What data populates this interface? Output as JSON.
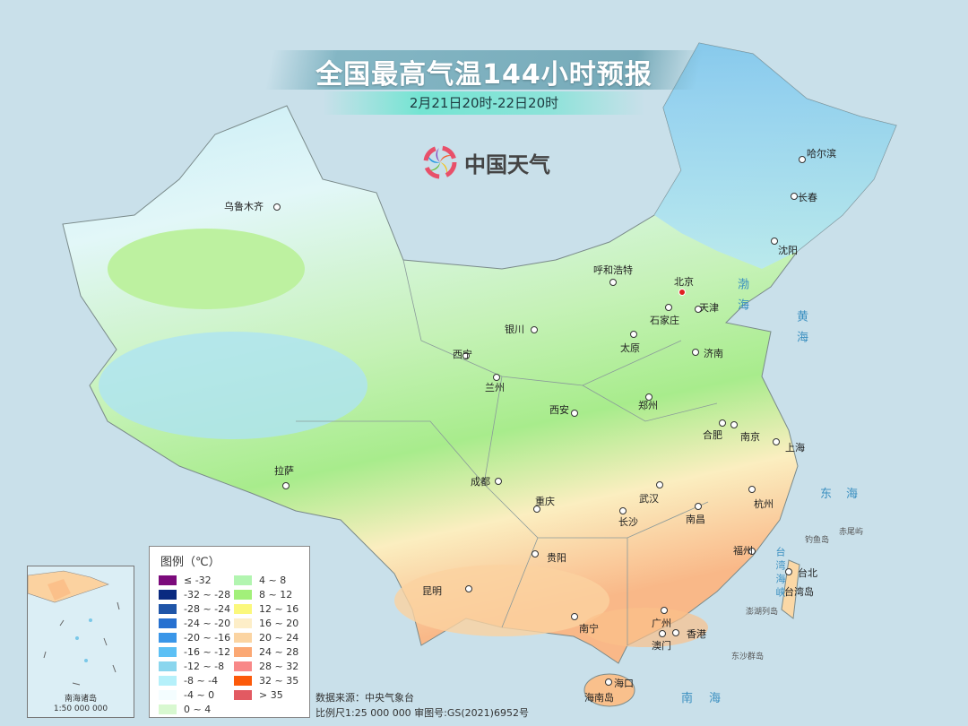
{
  "title": "全国最高气温144小时预报",
  "subtitle": "2月21日20时-22日20时",
  "logo": {
    "text": "中国天气",
    "icon": "pinwheel-logo-icon"
  },
  "cities": [
    {
      "name": "乌鲁木齐"
    },
    {
      "name": "哈尔滨"
    },
    {
      "name": "长春"
    },
    {
      "name": "沈阳"
    },
    {
      "name": "呼和浩特"
    },
    {
      "name": "北京",
      "capital": true
    },
    {
      "name": "天津"
    },
    {
      "name": "石家庄"
    },
    {
      "name": "太原"
    },
    {
      "name": "济南"
    },
    {
      "name": "银川"
    },
    {
      "name": "西宁"
    },
    {
      "name": "兰州"
    },
    {
      "name": "西安"
    },
    {
      "name": "郑州"
    },
    {
      "name": "合肥"
    },
    {
      "name": "南京"
    },
    {
      "name": "上海"
    },
    {
      "name": "拉萨"
    },
    {
      "name": "成都"
    },
    {
      "name": "重庆"
    },
    {
      "name": "武汉"
    },
    {
      "name": "杭州"
    },
    {
      "name": "长沙"
    },
    {
      "name": "南昌"
    },
    {
      "name": "贵阳"
    },
    {
      "name": "福州"
    },
    {
      "name": "台北"
    },
    {
      "name": "昆明"
    },
    {
      "name": "南宁"
    },
    {
      "name": "广州"
    },
    {
      "name": "香港"
    },
    {
      "name": "澳门"
    },
    {
      "name": "海口"
    }
  ],
  "places": [
    "台湾岛",
    "海南岛",
    "澎湖列岛",
    "钓鱼岛",
    "赤尾屿",
    "东沙群岛"
  ],
  "seas": [
    "渤海",
    "黄海",
    "东海",
    "南海",
    "台湾海峡"
  ],
  "legend": {
    "title": "图例（℃）",
    "items": [
      {
        "label": "≤ -32",
        "color": "#7b0a7b"
      },
      {
        "label": "-32 ~ -28",
        "color": "#0a2a80"
      },
      {
        "label": "-28 ~ -24",
        "color": "#1f55a8"
      },
      {
        "label": "-24 ~ -20",
        "color": "#2670d0"
      },
      {
        "label": "-20 ~ -16",
        "color": "#3a96e8"
      },
      {
        "label": "-16 ~ -12",
        "color": "#5cc0f5"
      },
      {
        "label": "-12 ~ -8",
        "color": "#8ad6ee"
      },
      {
        "label": "-8 ~ -4",
        "color": "#b5f0fa"
      },
      {
        "label": "-4 ~ 0",
        "color": "#f4fdff"
      },
      {
        "label": "0 ~ 4",
        "color": "#d8f8d0"
      },
      {
        "label": "4 ~ 8",
        "color": "#b2f5b0"
      },
      {
        "label": "8 ~ 12",
        "color": "#a2f07a"
      },
      {
        "label": "12 ~ 16",
        "color": "#fbf87c"
      },
      {
        "label": "16 ~ 20",
        "color": "#fdeec8"
      },
      {
        "label": "20 ~ 24",
        "color": "#fbd4a2"
      },
      {
        "label": "24 ~ 28",
        "color": "#fba874"
      },
      {
        "label": "28 ~ 32",
        "color": "#f88888"
      },
      {
        "label": "32 ~ 35",
        "color": "#fc5a0a"
      },
      {
        "label": "> 35",
        "color": "#e25a62"
      }
    ]
  },
  "source": {
    "line1": "数据来源：中央气象台",
    "line2": "比例尺1:25 000 000   审图号:GS(2021)6952号"
  },
  "inset": {
    "title": "南海诸岛",
    "scale": "1:50 000 000"
  }
}
